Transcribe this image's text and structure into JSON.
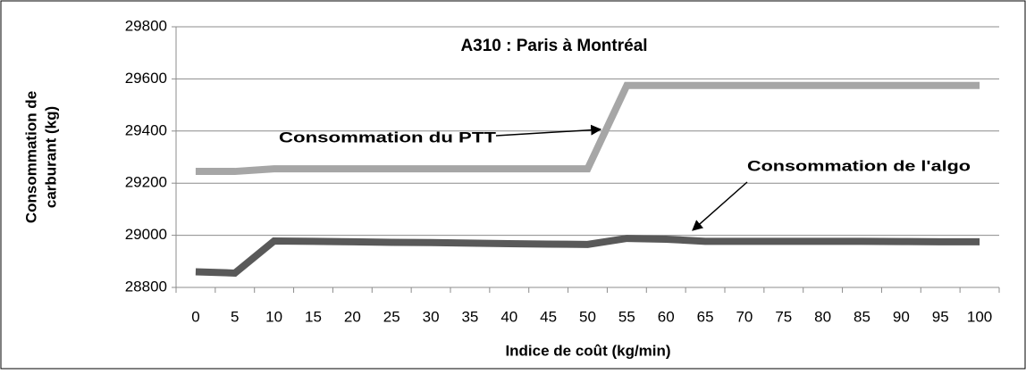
{
  "chart_data": {
    "type": "line",
    "title": "A310 : Paris à Montréal",
    "xlabel": "Indice de coût (kg/min)",
    "ylabel": [
      "Consommation de",
      "carburant (kg)"
    ],
    "categories": [
      "0",
      "5",
      "10",
      "15",
      "20",
      "25",
      "30",
      "35",
      "40",
      "45",
      "50",
      "55",
      "60",
      "65",
      "70",
      "75",
      "80",
      "85",
      "90",
      "95",
      "100"
    ],
    "series": [
      {
        "color": "#a6a6a6",
        "values": [
          29245,
          29245,
          29255,
          29255,
          29255,
          29255,
          29255,
          29255,
          29255,
          29255,
          29255,
          29575,
          29575,
          29575,
          29575,
          29575,
          29575,
          29575,
          29575,
          29575,
          29575
        ]
      },
      {
        "color": "#595959",
        "values": [
          28860,
          28855,
          28978,
          28977,
          28975,
          28973,
          28972,
          28970,
          28968,
          28966,
          28965,
          28988,
          28985,
          28977,
          28977,
          28977,
          28977,
          28977,
          28976,
          28975,
          28975
        ]
      }
    ],
    "annotations": [
      "Consommation du PTT",
      "Consommation de l'algo"
    ],
    "ylim": [
      28800,
      29800
    ],
    "yticks": [
      28800,
      29000,
      29200,
      29400,
      29600,
      29800
    ],
    "grid": true
  }
}
